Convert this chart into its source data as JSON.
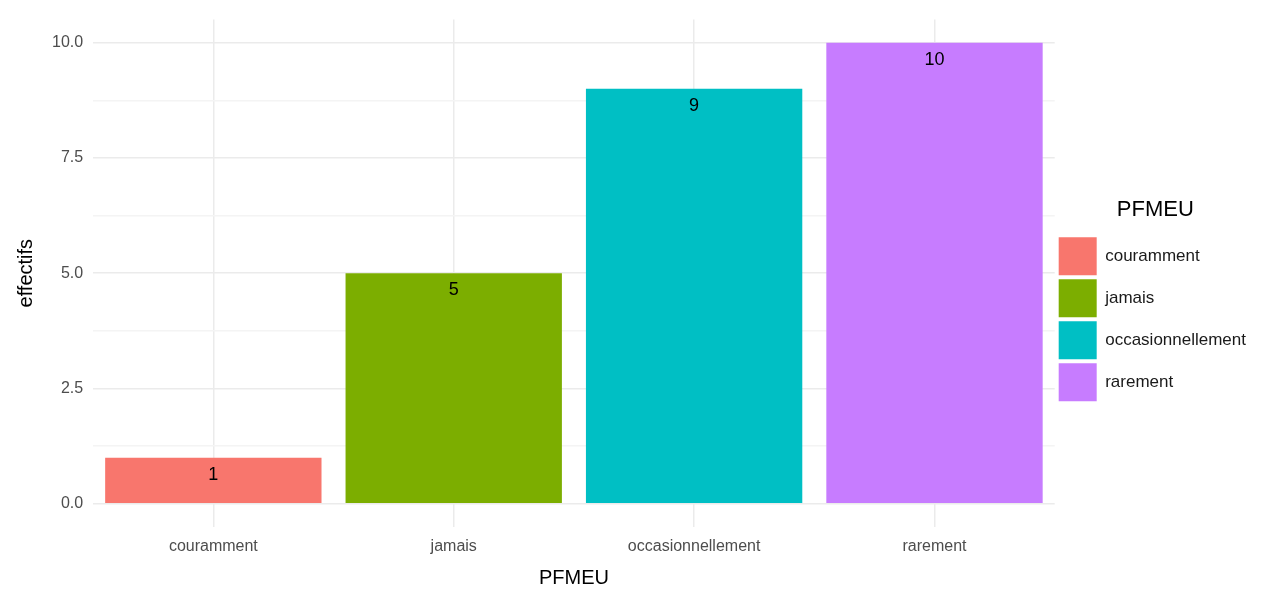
{
  "chart_data": {
    "type": "bar",
    "xlabel": "PFMEU",
    "ylabel": "effectifs",
    "legend_title": "PFMEU",
    "categories": [
      "couramment",
      "jamais",
      "occasionnellement",
      "rarement"
    ],
    "series": [
      {
        "name": "couramment",
        "color": "#f8766d",
        "values": [
          1,
          null,
          null,
          null
        ]
      },
      {
        "name": "jamais",
        "color": "#7cae00",
        "values": [
          null,
          5,
          null,
          null
        ]
      },
      {
        "name": "occasionnellement",
        "color": "#00bfc4",
        "values": [
          null,
          null,
          9,
          null
        ]
      },
      {
        "name": "rarement",
        "color": "#c77cff",
        "values": [
          null,
          null,
          null,
          10
        ]
      }
    ],
    "ylim": [
      -0.5,
      10.5
    ],
    "yticks": [
      {
        "value": 0,
        "label": "0.0"
      },
      {
        "value": 1.25,
        "label": null
      },
      {
        "value": 2.5,
        "label": "2.5"
      },
      {
        "value": 3.75,
        "label": null
      },
      {
        "value": 5,
        "label": "5.0"
      },
      {
        "value": 6.25,
        "label": null
      },
      {
        "value": 7.5,
        "label": "7.5"
      },
      {
        "value": 8.75,
        "label": null
      },
      {
        "value": 10,
        "label": "10.0"
      }
    ],
    "grid": true,
    "legend": "right",
    "data_labels": true
  }
}
